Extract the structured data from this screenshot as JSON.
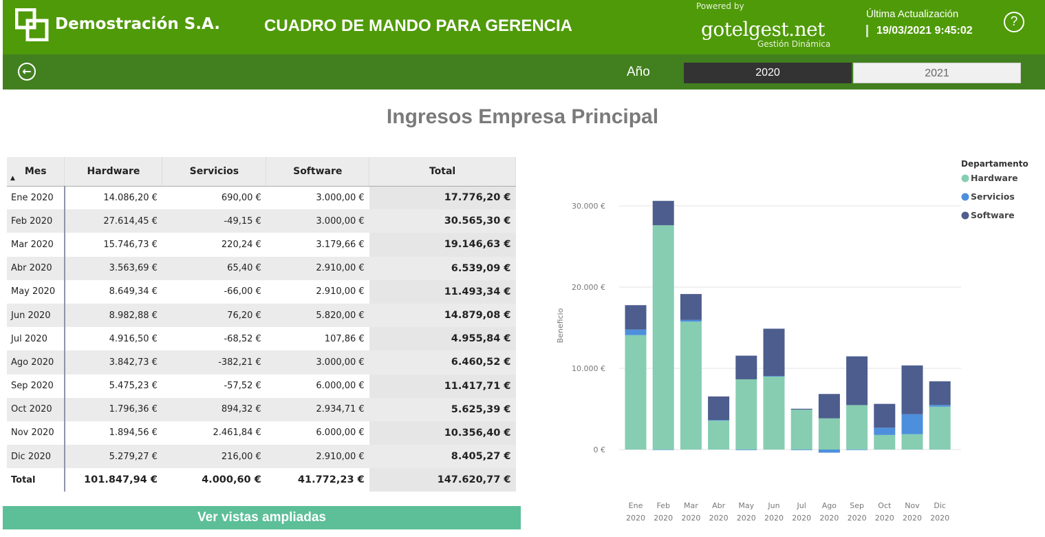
{
  "header": {
    "company": "Demostración S.A.",
    "title": "CUADRO DE MANDO PARA GERENCIA",
    "powered_by": "Powered by",
    "brand": "gotelgest.net",
    "brand_sub": "Gestión Dinámica",
    "last_update_label": "Última Actualización",
    "last_update_value": "19/03/2021 9:45:02",
    "help_label": "?"
  },
  "filter": {
    "label": "Año",
    "years": [
      "2020",
      "2021"
    ],
    "selected": "2020"
  },
  "page_title": "Ingresos Empresa Principal",
  "table": {
    "columns": [
      "Mes",
      "Hardware",
      "Servicios",
      "Software",
      "Total"
    ],
    "rows": [
      [
        "Ene 2020",
        "14.086,20 €",
        "690,00 €",
        "3.000,00 €",
        "17.776,20 €"
      ],
      [
        "Feb 2020",
        "27.614,45 €",
        "-49,15 €",
        "3.000,00 €",
        "30.565,30 €"
      ],
      [
        "Mar 2020",
        "15.746,73 €",
        "220,24 €",
        "3.179,66 €",
        "19.146,63 €"
      ],
      [
        "Abr 2020",
        "3.563,69 €",
        "65,40 €",
        "2.910,00 €",
        "6.539,09 €"
      ],
      [
        "May 2020",
        "8.649,34 €",
        "-66,00 €",
        "2.910,00 €",
        "11.493,34 €"
      ],
      [
        "Jun 2020",
        "8.982,88 €",
        "76,20 €",
        "5.820,00 €",
        "14.879,08 €"
      ],
      [
        "Jul 2020",
        "4.916,50 €",
        "-68,52 €",
        "107,86 €",
        "4.955,84 €"
      ],
      [
        "Ago 2020",
        "3.842,73 €",
        "-382,21 €",
        "3.000,00 €",
        "6.460,52 €"
      ],
      [
        "Sep 2020",
        "5.475,23 €",
        "-57,52 €",
        "6.000,00 €",
        "11.417,71 €"
      ],
      [
        "Oct 2020",
        "1.796,36 €",
        "894,32 €",
        "2.934,71 €",
        "5.625,39 €"
      ],
      [
        "Nov 2020",
        "1.894,56 €",
        "2.461,84 €",
        "6.000,00 €",
        "10.356,40 €"
      ],
      [
        "Dic 2020",
        "5.279,27 €",
        "216,00 €",
        "2.910,00 €",
        "8.405,27 €"
      ]
    ],
    "total_row": [
      "Total",
      "101.847,94 €",
      "4.000,60 €",
      "41.772,23 €",
      "147.620,77 €"
    ]
  },
  "cta_label": "Ver vistas ampliadas",
  "chart_data": {
    "type": "bar",
    "stacked": true,
    "categories": [
      "Ene 2020",
      "Feb 2020",
      "Mar 2020",
      "Abr 2020",
      "May 2020",
      "Jun 2020",
      "Jul 2020",
      "Ago 2020",
      "Sep 2020",
      "Oct 2020",
      "Nov 2020",
      "Dic 2020"
    ],
    "category_lines": [
      [
        "Ene",
        "2020"
      ],
      [
        "Feb",
        "2020"
      ],
      [
        "Mar",
        "2020"
      ],
      [
        "Abr",
        "2020"
      ],
      [
        "May",
        "2020"
      ],
      [
        "Jun",
        "2020"
      ],
      [
        "Jul",
        "2020"
      ],
      [
        "Ago",
        "2020"
      ],
      [
        "Sep",
        "2020"
      ],
      [
        "Oct",
        "2020"
      ],
      [
        "Nov",
        "2020"
      ],
      [
        "Dic",
        "2020"
      ]
    ],
    "series": [
      {
        "name": "Hardware",
        "color": "#86cdb2",
        "values": [
          14086.2,
          27614.45,
          15746.73,
          3563.69,
          8649.34,
          8982.88,
          4916.5,
          3842.73,
          5475.23,
          1796.36,
          1894.56,
          5279.27
        ]
      },
      {
        "name": "Servicios",
        "color": "#4d8fdc",
        "values": [
          690.0,
          -49.15,
          220.24,
          65.4,
          -66.0,
          76.2,
          -68.52,
          -382.21,
          -57.52,
          894.32,
          2461.84,
          216.0
        ]
      },
      {
        "name": "Software",
        "color": "#4d5d8e",
        "values": [
          3000.0,
          3000.0,
          3179.66,
          2910.0,
          2910.0,
          5820.0,
          107.86,
          3000.0,
          6000.0,
          2934.71,
          6000.0,
          2910.0
        ]
      }
    ],
    "ylabel": "Beneficio",
    "yticks": [
      0,
      10000,
      20000,
      30000
    ],
    "ytick_labels": [
      "0 €",
      "10.000 €",
      "20.000 €",
      "30.000 €"
    ],
    "ylim": [
      -1000,
      32000
    ],
    "legend_title": "Departamento",
    "legend_position": "top-right",
    "grid": true
  }
}
